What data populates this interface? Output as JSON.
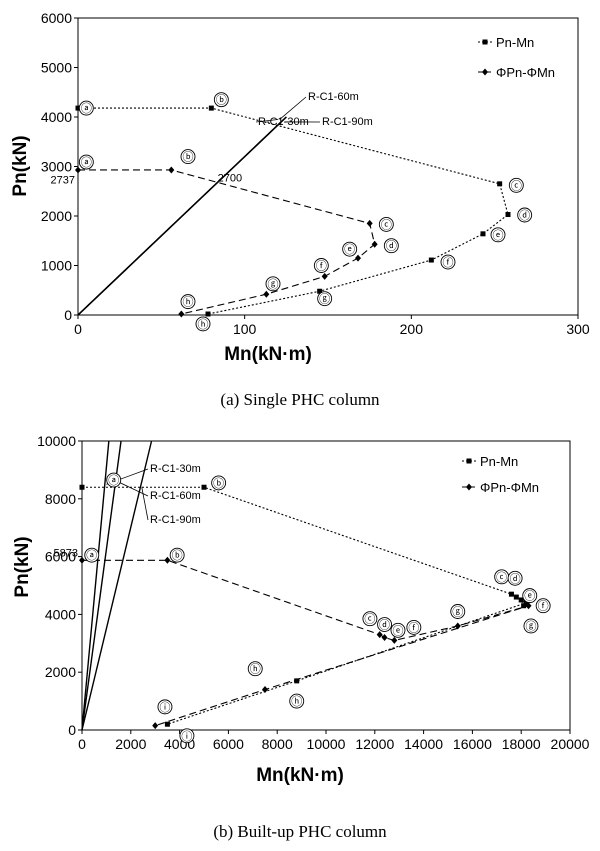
{
  "chart_data": [
    {
      "type": "line",
      "caption": "(a) Single PHC column",
      "xlabel": "Mn(kN·m)",
      "ylabel": "Pn(kN)",
      "xlim": [
        0,
        300
      ],
      "ylim": [
        0,
        6000
      ],
      "xticks": [
        0,
        100,
        200,
        300
      ],
      "yticks": [
        0,
        1000,
        2000,
        3000,
        4000,
        5000,
        6000
      ],
      "legend_position": "top-right",
      "series": [
        {
          "name": "Pn-Mn",
          "marker": "square",
          "dash": "dotted",
          "x": [
            0,
            80,
            253,
            258,
            243,
            212,
            145,
            78
          ],
          "y": [
            4180,
            4180,
            2650,
            2030,
            1640,
            1110,
            480,
            20
          ]
        },
        {
          "name": "ΦPn-ΦMn",
          "marker": "diamond",
          "dash": "dashed",
          "x": [
            0,
            56,
            175,
            178,
            168,
            148,
            113,
            62
          ],
          "y": [
            2930,
            2930,
            1850,
            1430,
            1150,
            780,
            420,
            20
          ]
        }
      ],
      "demand_lines": [
        {
          "label": "R-C1-30m",
          "x": [
            0,
            125
          ],
          "y": [
            0,
            4000
          ]
        },
        {
          "label": "R-C1-60m",
          "x": [
            0,
            125
          ],
          "y": [
            0,
            4000
          ]
        },
        {
          "label": "R-C1-90m",
          "x": [
            0,
            125
          ],
          "y": [
            0,
            4000
          ]
        }
      ],
      "point_labels": [
        {
          "text": "a",
          "x": 5,
          "y": 4180
        },
        {
          "text": "b",
          "x": 86,
          "y": 4350
        },
        {
          "text": "c",
          "x": 263,
          "y": 2620
        },
        {
          "text": "d",
          "x": 268,
          "y": 2020
        },
        {
          "text": "e",
          "x": 252,
          "y": 1620
        },
        {
          "text": "f",
          "x": 222,
          "y": 1070
        },
        {
          "text": "g",
          "x": 148,
          "y": 330
        },
        {
          "text": "h",
          "x": 75,
          "y": -180
        },
        {
          "text": "a",
          "x": 5,
          "y": 3090
        },
        {
          "text": "b",
          "x": 66,
          "y": 3200
        },
        {
          "text": "c",
          "x": 185,
          "y": 1830
        },
        {
          "text": "d",
          "x": 188,
          "y": 1400
        },
        {
          "text": "e",
          "x": 163,
          "y": 1330
        },
        {
          "text": "f",
          "x": 146,
          "y": 1000
        },
        {
          "text": "g",
          "x": 117,
          "y": 630
        },
        {
          "text": "h",
          "x": 66,
          "y": 270
        }
      ],
      "annotations": [
        {
          "text": "2737",
          "x": -30,
          "y": 2737
        },
        {
          "text": "2700",
          "x": 82,
          "y": 2700
        }
      ]
    },
    {
      "type": "line",
      "caption": "(b) Built-up PHC column",
      "xlabel": "Mn(kN·m)",
      "ylabel": "Pn(kN)",
      "xlim": [
        0,
        20000
      ],
      "ylim": [
        0,
        10000
      ],
      "xticks": [
        0,
        2000,
        4000,
        6000,
        8000,
        10000,
        12000,
        14000,
        16000,
        18000,
        20000
      ],
      "yticks": [
        0,
        2000,
        4000,
        6000,
        8000,
        10000
      ],
      "legend_position": "top-right",
      "series": [
        {
          "name": "Pn-Mn",
          "marker": "square",
          "dash": "dotted",
          "x": [
            0,
            5000,
            17600,
            17800,
            18000,
            18100,
            18200,
            8800,
            3500
          ],
          "y": [
            8400,
            8400,
            4700,
            4600,
            4500,
            4300,
            4400,
            1700,
            200
          ]
        },
        {
          "name": "ΦPn-ΦMn",
          "marker": "diamond",
          "dash": "dashed",
          "x": [
            0,
            3500,
            12200,
            12400,
            12800,
            15400,
            18300,
            7500,
            3000
          ],
          "y": [
            5873,
            5873,
            3300,
            3200,
            3100,
            3600,
            4300,
            1400,
            150
          ]
        }
      ],
      "demand_lines": [
        {
          "label": "R-C1-30m",
          "x": [
            0,
            1100
          ],
          "y": [
            0,
            10000
          ]
        },
        {
          "label": "R-C1-60m",
          "x": [
            0,
            1600
          ],
          "y": [
            0,
            10000
          ]
        },
        {
          "label": "R-C1-90m",
          "x": [
            0,
            2850
          ],
          "y": [
            0,
            10000
          ]
        }
      ],
      "point_labels": [
        {
          "text": "a",
          "x": 1300,
          "y": 8650
        },
        {
          "text": "b",
          "x": 5600,
          "y": 8550
        },
        {
          "text": "c",
          "x": 17200,
          "y": 5300
        },
        {
          "text": "d",
          "x": 17750,
          "y": 5250
        },
        {
          "text": "e",
          "x": 18350,
          "y": 4650
        },
        {
          "text": "f",
          "x": 18900,
          "y": 4300
        },
        {
          "text": "g",
          "x": 18400,
          "y": 3600
        },
        {
          "text": "h",
          "x": 8800,
          "y": 1000
        },
        {
          "text": "i",
          "x": 3400,
          "y": 800
        },
        {
          "text": "a",
          "x": 400,
          "y": 6050
        },
        {
          "text": "b",
          "x": 3900,
          "y": 6050
        },
        {
          "text": "c",
          "x": 11800,
          "y": 3850
        },
        {
          "text": "d",
          "x": 12400,
          "y": 3650
        },
        {
          "text": "e",
          "x": 12950,
          "y": 3450
        },
        {
          "text": "f",
          "x": 13600,
          "y": 3550
        },
        {
          "text": "g",
          "x": 15400,
          "y": 4100
        },
        {
          "text": "h",
          "x": 7100,
          "y": 2120
        },
        {
          "text": "i",
          "x": 4300,
          "y": -200
        }
      ],
      "annotations": [
        {
          "text": "5873",
          "x": -1500,
          "y": 5873
        }
      ]
    }
  ]
}
